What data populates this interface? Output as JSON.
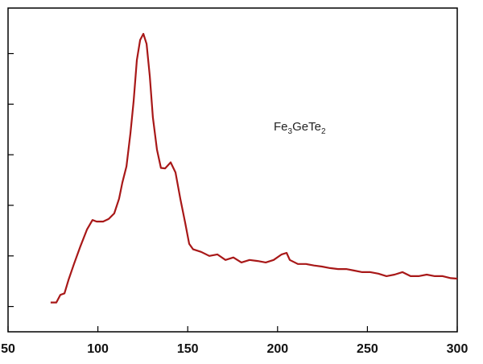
{
  "chart_data": {
    "type": "line",
    "annotation": [
      "Fe",
      "3",
      "GeTe",
      "2"
    ],
    "xlim": [
      50,
      300
    ],
    "xticks": [
      50,
      100,
      150,
      200,
      250,
      300
    ],
    "ylim": [
      0.5,
      6.9
    ],
    "yticks": [
      1,
      2,
      3,
      4,
      5,
      6
    ],
    "series": [
      {
        "color": "#a81818",
        "x": [
          73.7,
          76.9,
          79.1,
          81.4,
          83.6,
          86.7,
          90.3,
          93.9,
          97.0,
          99.3,
          102.9,
          106.0,
          109.1,
          111.8,
          113.6,
          115.9,
          118.1,
          119.9,
          121.7,
          123.5,
          125.3,
          127.1,
          128.9,
          130.6,
          132.9,
          135.1,
          137.4,
          140.5,
          143.2,
          145.9,
          148.6,
          150.8,
          153.0,
          157.5,
          162.0,
          166.5,
          171.0,
          175.4,
          179.9,
          184.4,
          188.9,
          193.4,
          197.8,
          202.3,
          205.0,
          206.8,
          211.3,
          215.8,
          220.3,
          224.7,
          229.2,
          233.7,
          238.2,
          242.7,
          247.1,
          251.6,
          256.1,
          260.6,
          265.1,
          269.5,
          274.0,
          278.5,
          283.0,
          287.5,
          291.9,
          296.4,
          300
        ],
        "values": [
          1.08,
          1.08,
          1.23,
          1.26,
          1.52,
          1.84,
          2.19,
          2.52,
          2.71,
          2.68,
          2.68,
          2.73,
          2.84,
          3.13,
          3.45,
          3.77,
          4.42,
          5.06,
          5.87,
          6.27,
          6.39,
          6.19,
          5.55,
          4.74,
          4.1,
          3.74,
          3.73,
          3.85,
          3.65,
          3.13,
          2.65,
          2.24,
          2.13,
          2.08,
          2.0,
          2.03,
          1.92,
          1.97,
          1.87,
          1.92,
          1.9,
          1.87,
          1.92,
          2.03,
          2.06,
          1.92,
          1.84,
          1.84,
          1.81,
          1.79,
          1.76,
          1.74,
          1.74,
          1.71,
          1.68,
          1.68,
          1.65,
          1.6,
          1.63,
          1.68,
          1.6,
          1.6,
          1.63,
          1.6,
          1.6,
          1.56,
          1.55
        ]
      }
    ]
  }
}
